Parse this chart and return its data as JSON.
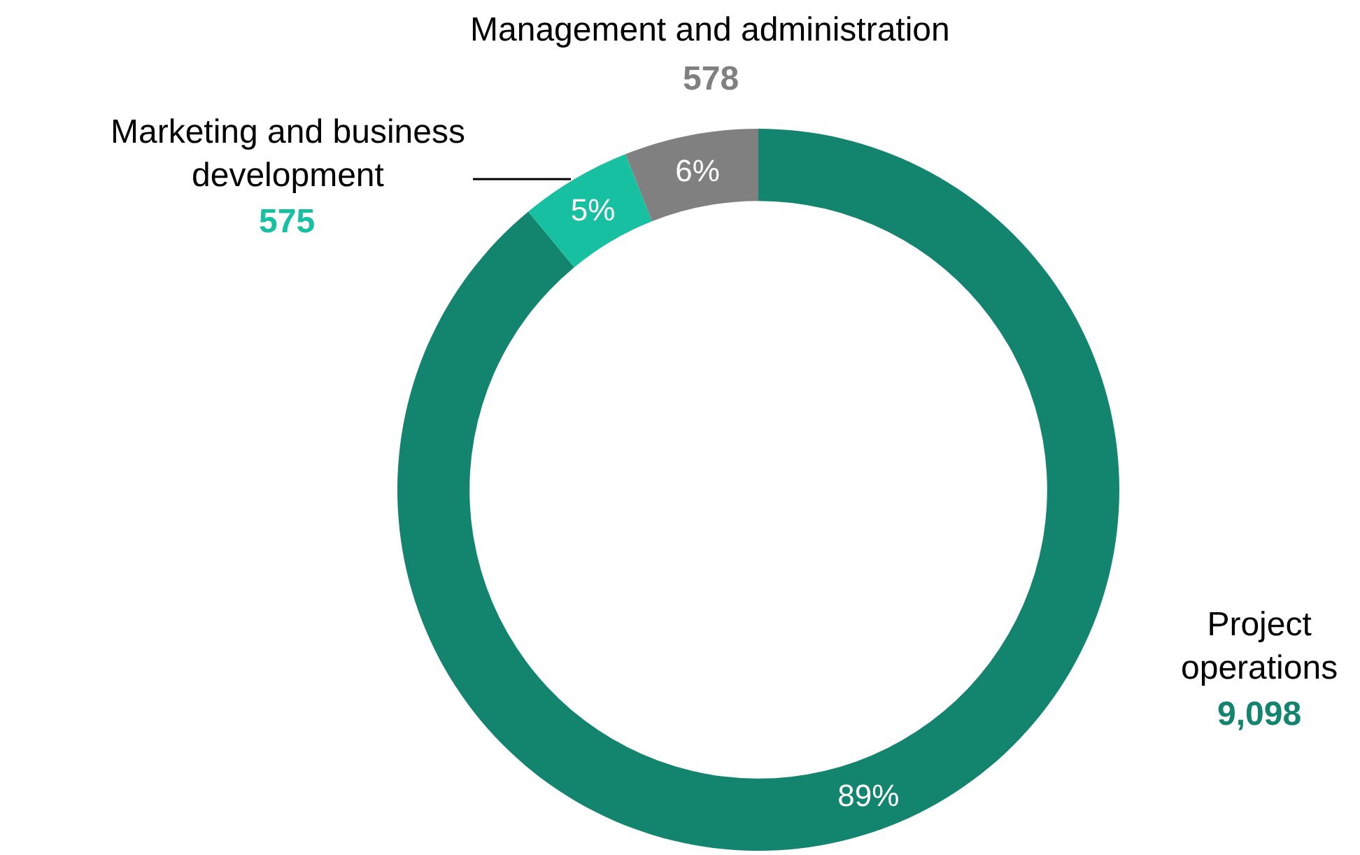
{
  "chart_data": {
    "type": "donut",
    "categories": [
      "Project operations",
      "Marketing and business development",
      "Management and administration"
    ],
    "values": [
      89,
      5,
      6
    ],
    "colors": [
      "#13856f",
      "#17c0a0",
      "#808080"
    ],
    "value_labels": [
      "89%",
      "5%",
      "6%"
    ],
    "annotations": [
      "9,098",
      "575",
      "578"
    ],
    "legend": false
  }
}
